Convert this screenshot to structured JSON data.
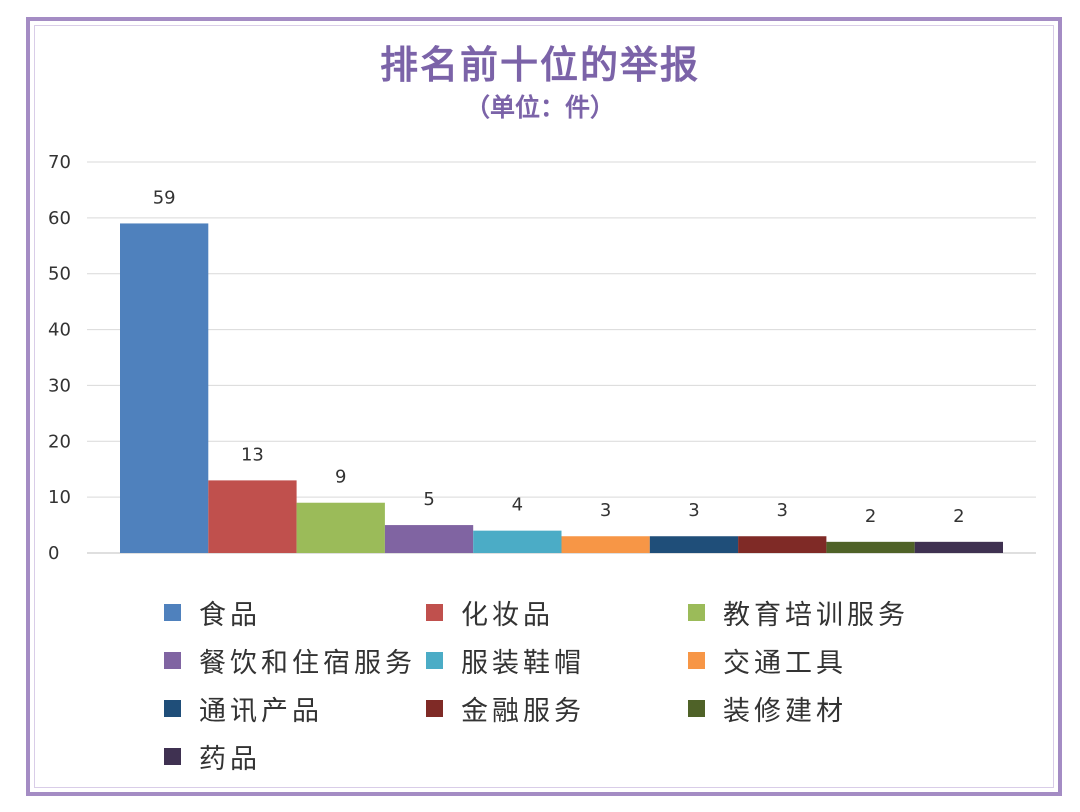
{
  "chart_data": {
    "type": "bar",
    "title": "排名前十位的举报",
    "subtitle": "（单位：件）",
    "xlabel": "",
    "ylabel": "",
    "ylim": [
      0,
      70
    ],
    "yticks": [
      0,
      10,
      20,
      30,
      40,
      50,
      60,
      70
    ],
    "grid": true,
    "legend_position": "bottom",
    "categories": [
      "食品",
      "化妆品",
      "教育培训服务",
      "餐饮和住宿服务",
      "服装鞋帽",
      "交通工具",
      "通讯产品",
      "金融服务",
      "装修建材",
      "药品"
    ],
    "values": [
      59,
      13,
      9,
      5,
      4,
      3,
      3,
      3,
      2,
      2
    ],
    "colors": [
      "#4f81bd",
      "#c0504d",
      "#9bbb59",
      "#8064a2",
      "#4bacc6",
      "#f79646",
      "#1f4e79",
      "#7f2a26",
      "#4f6228",
      "#3f3151"
    ],
    "title_color": "#7b63a8"
  }
}
